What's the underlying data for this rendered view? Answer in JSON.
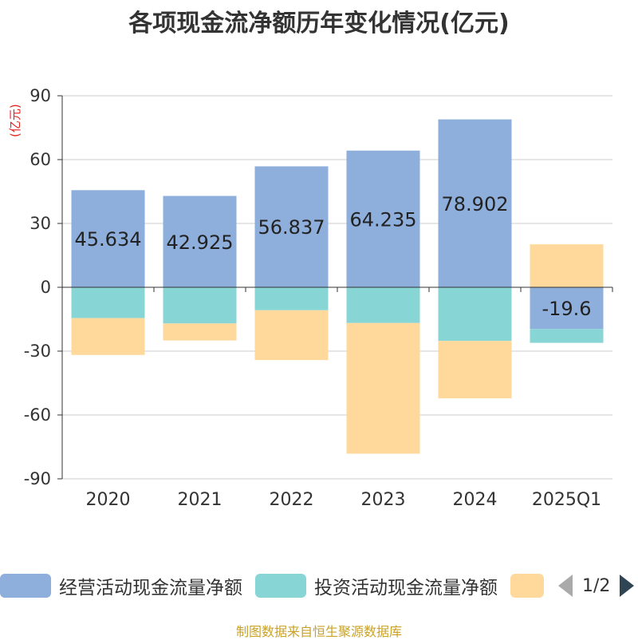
{
  "title": "各项现金流净额历年变化情况(亿元)",
  "unit_label": "(亿元)",
  "source": "制图数据来自恒生聚源数据库",
  "legend": {
    "items": [
      {
        "label": "经营活动现金流量净额",
        "color": "#8eaedb"
      },
      {
        "label": "投资活动现金流量净额",
        "color": "#88d5d6"
      },
      {
        "label": "",
        "color": "#ffd99b"
      }
    ],
    "page": "1/2"
  },
  "chart_data": {
    "type": "bar",
    "stacked": true,
    "categories": [
      "2020",
      "2021",
      "2022",
      "2023",
      "2024",
      "2025Q1"
    ],
    "ylim": [
      -90,
      90
    ],
    "yticks": [
      90,
      60,
      30,
      0,
      -30,
      -60,
      -90
    ],
    "grid": true,
    "legend_position": "bottom",
    "series": [
      {
        "name": "经营活动现金流量净额",
        "color": "#8eaedb",
        "values": [
          45.634,
          42.925,
          56.837,
          64.235,
          78.902,
          -19.6
        ],
        "labels": [
          "45.634",
          "42.925",
          "56.837",
          "64.235",
          "78.902",
          "-19.6"
        ]
      },
      {
        "color": "#88d5d6",
        "values": [
          -14.5,
          -17.0,
          -10.8,
          -16.8,
          -25.2,
          -6.5
        ]
      },
      {
        "color": "#ffd99b",
        "values": [
          -17.3,
          -8.0,
          -23.4,
          -61.4,
          -27.0,
          20.2
        ]
      }
    ]
  }
}
